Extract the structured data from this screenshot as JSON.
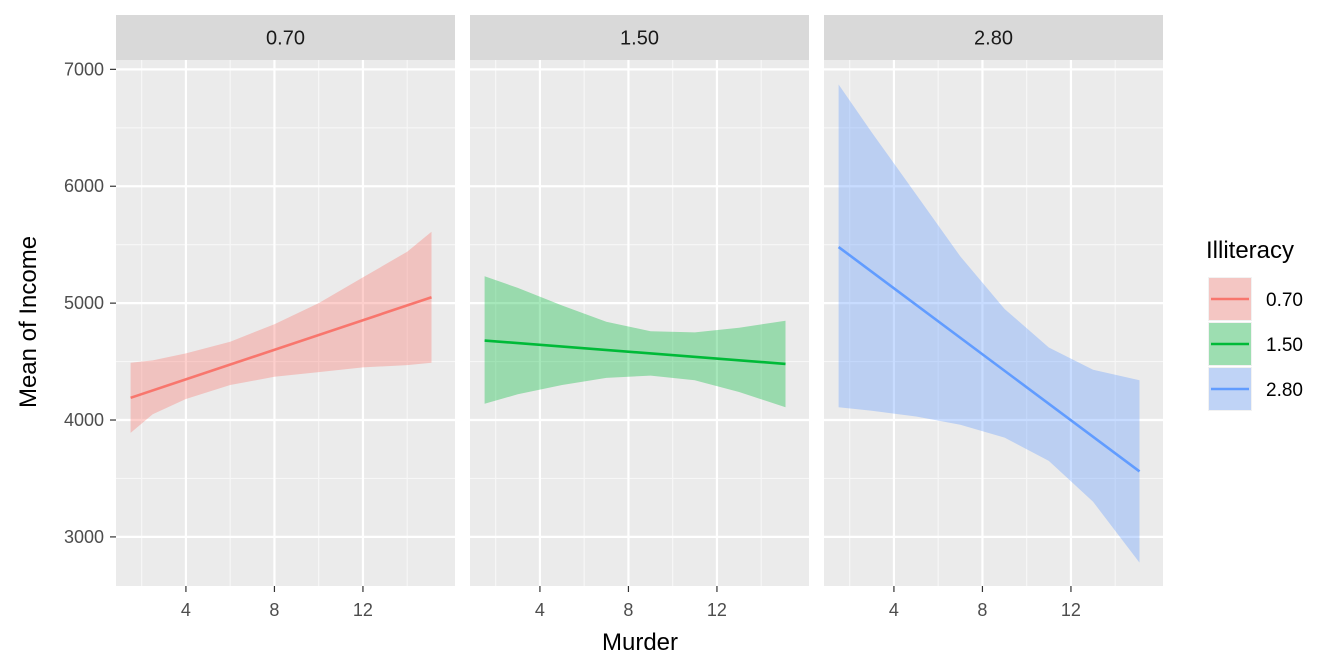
{
  "chart_data": {
    "type": "line",
    "xlabel": "Murder",
    "ylabel": "Mean of Income",
    "xlim": [
      0.84,
      16.16
    ],
    "ylim": [
      2580,
      7080
    ],
    "x_ticks": [
      "4",
      "8",
      "12"
    ],
    "x_tick_values": [
      4,
      8,
      12
    ],
    "y_ticks": [
      "3000",
      "4000",
      "5000",
      "6000",
      "7000"
    ],
    "y_tick_values": [
      3000,
      4000,
      5000,
      6000,
      7000
    ],
    "grid": true,
    "legend": {
      "title": "Illiteracy",
      "position": "right",
      "entries": [
        "0.70",
        "1.50",
        "2.80"
      ]
    },
    "panels": [
      {
        "label": "0.70",
        "color": "#F8766D",
        "line": {
          "x": [
            1.5,
            15.1
          ],
          "y": [
            4190,
            5050
          ]
        },
        "band": {
          "x": [
            1.5,
            2.5,
            4,
            6,
            8,
            10,
            12,
            14,
            15.1
          ],
          "lower": [
            3890,
            4050,
            4180,
            4300,
            4370,
            4410,
            4450,
            4470,
            4490
          ],
          "upper": [
            4490,
            4510,
            4570,
            4670,
            4820,
            5000,
            5220,
            5440,
            5610
          ]
        }
      },
      {
        "label": "1.50",
        "color": "#00BA38",
        "line": {
          "x": [
            1.5,
            15.1
          ],
          "y": [
            4680,
            4480
          ]
        },
        "band": {
          "x": [
            1.5,
            3,
            5,
            7,
            9,
            11,
            13,
            15.1
          ],
          "lower": [
            4140,
            4220,
            4300,
            4360,
            4380,
            4340,
            4240,
            4110
          ],
          "upper": [
            5230,
            5130,
            4980,
            4840,
            4760,
            4750,
            4790,
            4850
          ]
        }
      },
      {
        "label": "2.80",
        "color": "#619CFF",
        "line": {
          "x": [
            1.5,
            15.1
          ],
          "y": [
            5480,
            3560
          ]
        },
        "band": {
          "x": [
            1.5,
            3,
            5,
            7,
            9,
            11,
            13,
            15.1
          ],
          "lower": [
            4110,
            4080,
            4030,
            3960,
            3850,
            3650,
            3300,
            2780
          ],
          "upper": [
            6870,
            6460,
            5930,
            5400,
            4950,
            4620,
            4430,
            4340
          ]
        }
      }
    ]
  }
}
